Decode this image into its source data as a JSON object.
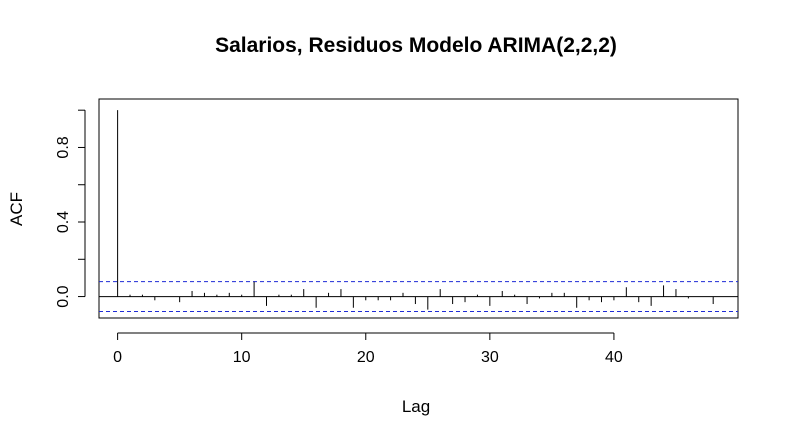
{
  "chart_data": {
    "type": "bar",
    "title": "Salarios, Residuos Modelo ARIMA(2,2,2)",
    "xlabel": "Lag",
    "ylabel": "ACF",
    "xlim": [
      -1.5,
      50
    ],
    "ylim": [
      -0.115,
      1.06
    ],
    "x_ticks": [
      0,
      10,
      20,
      30,
      40
    ],
    "x_tick_labels": [
      "0",
      "10",
      "20",
      "30",
      "40"
    ],
    "y_ticks": [
      0.0,
      0.2,
      0.4,
      0.6,
      0.8,
      1.0
    ],
    "y_tick_labels": [
      "0.0",
      "",
      "0.4",
      "",
      "0.8",
      ""
    ],
    "confidence_bound": 0.08,
    "lags": [
      0,
      1,
      2,
      3,
      4,
      5,
      6,
      7,
      8,
      9,
      10,
      11,
      12,
      13,
      14,
      15,
      16,
      17,
      18,
      19,
      20,
      21,
      22,
      23,
      24,
      25,
      26,
      27,
      28,
      29,
      30,
      31,
      32,
      33,
      34,
      35,
      36,
      37,
      38,
      39,
      40,
      41,
      42,
      43,
      44,
      45,
      46,
      47,
      48
    ],
    "acf": [
      1.0,
      0.01,
      0.01,
      -0.02,
      0.0,
      -0.03,
      0.03,
      0.02,
      0.01,
      0.02,
      0.01,
      0.08,
      -0.05,
      0.01,
      0.01,
      0.04,
      -0.06,
      0.02,
      0.04,
      -0.06,
      -0.02,
      -0.02,
      -0.02,
      0.02,
      -0.04,
      -0.07,
      0.04,
      -0.04,
      -0.03,
      0.01,
      -0.05,
      0.03,
      0.01,
      -0.04,
      -0.01,
      0.02,
      0.02,
      -0.06,
      -0.02,
      -0.03,
      -0.02,
      0.05,
      -0.03,
      -0.05,
      0.06,
      0.04,
      -0.01,
      0.0,
      -0.04
    ]
  }
}
